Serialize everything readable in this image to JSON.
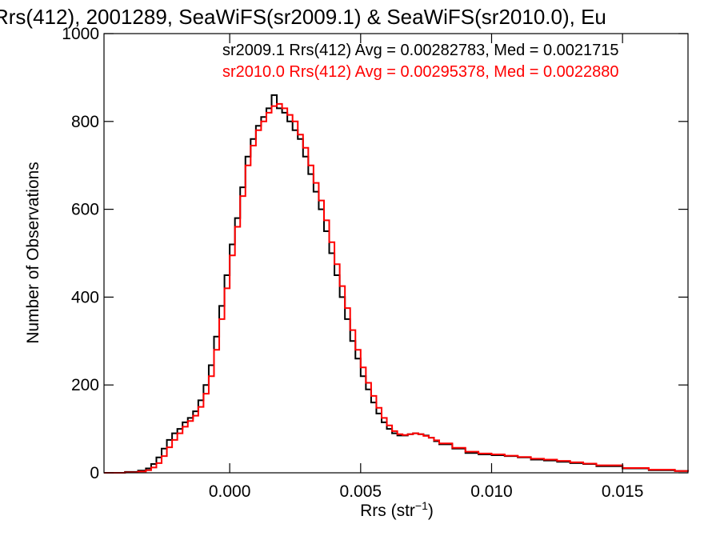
{
  "chart_data": {
    "type": "histogram-step",
    "title": "Rrs(412), 2001289, SeaWiFS(sr2009.1) & SeaWiFS(sr2010.0), Eu",
    "xlabel_main": "Rrs (str",
    "xlabel_sup": "−1",
    "xlabel_close": ")",
    "ylabel": "Number of Observations",
    "xlim": [
      -0.0048,
      0.0175
    ],
    "ylim": [
      0,
      1000
    ],
    "xticks": [
      0.0,
      0.005,
      0.01,
      0.015
    ],
    "xtick_labels": [
      "0.000",
      "0.005",
      "0.010",
      "0.015"
    ],
    "yticks": [
      0,
      200,
      400,
      600,
      800,
      1000
    ],
    "ytick_labels": [
      "0",
      "200",
      "400",
      "600",
      "800",
      "1000"
    ],
    "grid": false,
    "annotations": [
      {
        "text": "sr2009.1 Rrs(412) Avg = 0.00282783, Med = 0.0021715",
        "color": "#000000"
      },
      {
        "text": "sr2010.0 Rrs(412) Avg = 0.00295378, Med = 0.0022880",
        "color": "#ff0000"
      }
    ],
    "series": [
      {
        "name": "sr2009.1",
        "color": "#000000",
        "points": [
          [
            -0.0048,
            0
          ],
          [
            -0.004,
            2
          ],
          [
            -0.0035,
            5
          ],
          [
            -0.0032,
            10
          ],
          [
            -0.003,
            20
          ],
          [
            -0.0028,
            35
          ],
          [
            -0.0026,
            55
          ],
          [
            -0.0024,
            75
          ],
          [
            -0.0022,
            90
          ],
          [
            -0.002,
            100
          ],
          [
            -0.0018,
            115
          ],
          [
            -0.0016,
            125
          ],
          [
            -0.0014,
            140
          ],
          [
            -0.0012,
            165
          ],
          [
            -0.001,
            200
          ],
          [
            -0.0008,
            245
          ],
          [
            -0.0006,
            310
          ],
          [
            -0.0004,
            380
          ],
          [
            -0.0002,
            450
          ],
          [
            0.0,
            520
          ],
          [
            0.0002,
            580
          ],
          [
            0.0004,
            650
          ],
          [
            0.0006,
            720
          ],
          [
            0.0008,
            760
          ],
          [
            0.001,
            790
          ],
          [
            0.0012,
            810
          ],
          [
            0.0014,
            830
          ],
          [
            0.0016,
            860
          ],
          [
            0.0018,
            830
          ],
          [
            0.002,
            820
          ],
          [
            0.0022,
            800
          ],
          [
            0.0024,
            780
          ],
          [
            0.0026,
            760
          ],
          [
            0.0028,
            720
          ],
          [
            0.003,
            680
          ],
          [
            0.0032,
            640
          ],
          [
            0.0034,
            600
          ],
          [
            0.0036,
            550
          ],
          [
            0.0038,
            500
          ],
          [
            0.004,
            450
          ],
          [
            0.0042,
            400
          ],
          [
            0.0044,
            350
          ],
          [
            0.0046,
            300
          ],
          [
            0.0048,
            260
          ],
          [
            0.005,
            220
          ],
          [
            0.0052,
            190
          ],
          [
            0.0054,
            160
          ],
          [
            0.0056,
            135
          ],
          [
            0.0058,
            115
          ],
          [
            0.006,
            100
          ],
          [
            0.0062,
            90
          ],
          [
            0.0064,
            85
          ],
          [
            0.0066,
            85
          ],
          [
            0.0068,
            88
          ],
          [
            0.007,
            90
          ],
          [
            0.0072,
            88
          ],
          [
            0.0074,
            85
          ],
          [
            0.0076,
            80
          ],
          [
            0.0078,
            72
          ],
          [
            0.008,
            65
          ],
          [
            0.0085,
            55
          ],
          [
            0.009,
            45
          ],
          [
            0.0095,
            42
          ],
          [
            0.01,
            40
          ],
          [
            0.0105,
            38
          ],
          [
            0.011,
            35
          ],
          [
            0.0115,
            30
          ],
          [
            0.012,
            28
          ],
          [
            0.0125,
            25
          ],
          [
            0.013,
            22
          ],
          [
            0.0135,
            20
          ],
          [
            0.014,
            15
          ],
          [
            0.015,
            10
          ],
          [
            0.016,
            6
          ],
          [
            0.017,
            4
          ],
          [
            0.0175,
            3
          ]
        ]
      },
      {
        "name": "sr2010.0",
        "color": "#ff0000",
        "points": [
          [
            -0.0048,
            0
          ],
          [
            -0.004,
            1
          ],
          [
            -0.0035,
            3
          ],
          [
            -0.0032,
            6
          ],
          [
            -0.003,
            12
          ],
          [
            -0.0028,
            22
          ],
          [
            -0.0026,
            38
          ],
          [
            -0.0024,
            58
          ],
          [
            -0.0022,
            75
          ],
          [
            -0.002,
            90
          ],
          [
            -0.0018,
            105
          ],
          [
            -0.0016,
            118
          ],
          [
            -0.0014,
            130
          ],
          [
            -0.0012,
            150
          ],
          [
            -0.001,
            180
          ],
          [
            -0.0008,
            220
          ],
          [
            -0.0006,
            280
          ],
          [
            -0.0004,
            350
          ],
          [
            -0.0002,
            420
          ],
          [
            0.0,
            495
          ],
          [
            0.0002,
            560
          ],
          [
            0.0004,
            630
          ],
          [
            0.0006,
            700
          ],
          [
            0.0008,
            745
          ],
          [
            0.001,
            780
          ],
          [
            0.0012,
            800
          ],
          [
            0.0014,
            820
          ],
          [
            0.0016,
            835
          ],
          [
            0.0018,
            840
          ],
          [
            0.002,
            830
          ],
          [
            0.0022,
            815
          ],
          [
            0.0024,
            800
          ],
          [
            0.0026,
            770
          ],
          [
            0.0028,
            740
          ],
          [
            0.003,
            700
          ],
          [
            0.0032,
            660
          ],
          [
            0.0034,
            620
          ],
          [
            0.0036,
            575
          ],
          [
            0.0038,
            525
          ],
          [
            0.004,
            475
          ],
          [
            0.0042,
            425
          ],
          [
            0.0044,
            375
          ],
          [
            0.0046,
            325
          ],
          [
            0.0048,
            280
          ],
          [
            0.005,
            240
          ],
          [
            0.0052,
            205
          ],
          [
            0.0054,
            175
          ],
          [
            0.0056,
            148
          ],
          [
            0.0058,
            125
          ],
          [
            0.006,
            108
          ],
          [
            0.0062,
            95
          ],
          [
            0.0064,
            88
          ],
          [
            0.0066,
            86
          ],
          [
            0.0068,
            88
          ],
          [
            0.007,
            90
          ],
          [
            0.0072,
            88
          ],
          [
            0.0074,
            84
          ],
          [
            0.0076,
            80
          ],
          [
            0.0078,
            74
          ],
          [
            0.008,
            67
          ],
          [
            0.0085,
            57
          ],
          [
            0.009,
            48
          ],
          [
            0.0095,
            44
          ],
          [
            0.01,
            42
          ],
          [
            0.0105,
            39
          ],
          [
            0.011,
            36
          ],
          [
            0.0115,
            32
          ],
          [
            0.012,
            30
          ],
          [
            0.0125,
            27
          ],
          [
            0.013,
            24
          ],
          [
            0.0135,
            21
          ],
          [
            0.014,
            17
          ],
          [
            0.015,
            11
          ],
          [
            0.016,
            7
          ],
          [
            0.017,
            4
          ],
          [
            0.0175,
            3
          ]
        ]
      }
    ]
  }
}
